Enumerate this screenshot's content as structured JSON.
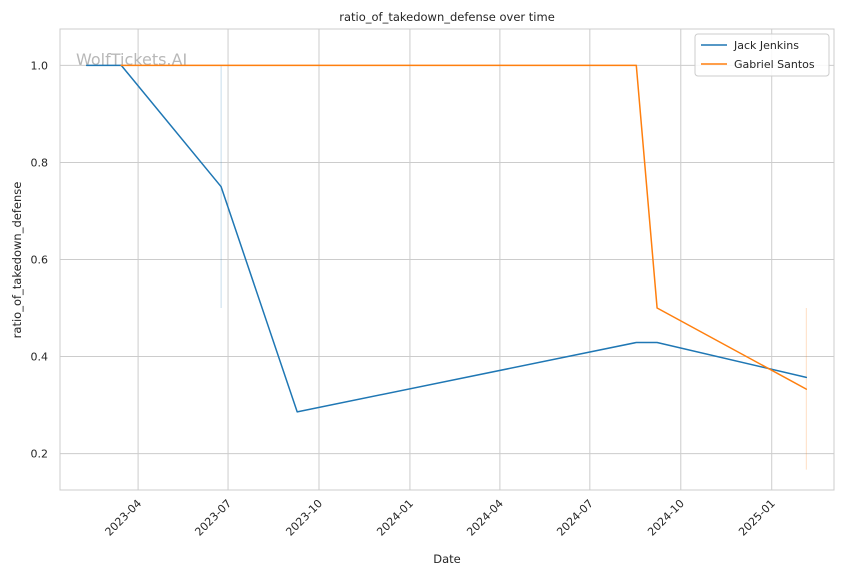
{
  "chart_data": {
    "type": "line",
    "title": "ratio_of_takedown_defense over time",
    "xlabel": "Date",
    "ylabel": "ratio_of_takedown_defense",
    "watermark": "WolfTickets.AI",
    "x_ticks": [
      "2023-04",
      "2023-07",
      "2023-10",
      "2024-01",
      "2024-04",
      "2024-07",
      "2024-10",
      "2025-01"
    ],
    "y_ticks": [
      0.2,
      0.4,
      0.6,
      0.8,
      1.0
    ],
    "y_tick_labels": [
      "0.2",
      "0.4",
      "0.6",
      "0.8",
      "1.0"
    ],
    "xlim": [
      "2023-01-12",
      "2025-03-05"
    ],
    "ylim": [
      0.125,
      1.075
    ],
    "grid": true,
    "legend_position": "top-right",
    "series": [
      {
        "name": "Jack Jenkins",
        "color": "#1f77b4",
        "points": [
          {
            "x": "2023-02-08",
            "y": 1.0
          },
          {
            "x": "2023-03-15",
            "y": 1.0
          },
          {
            "x": "2023-06-24",
            "y": 0.75
          },
          {
            "x": "2023-09-09",
            "y": 0.286
          },
          {
            "x": "2024-08-17",
            "y": 0.429
          },
          {
            "x": "2024-09-07",
            "y": 0.429
          },
          {
            "x": "2025-02-05",
            "y": 0.357
          }
        ]
      },
      {
        "name": "Gabriel Santos",
        "color": "#ff7f0e",
        "points": [
          {
            "x": "2023-03-15",
            "y": 1.0
          },
          {
            "x": "2024-08-17",
            "y": 1.0
          },
          {
            "x": "2024-09-07",
            "y": 0.5
          },
          {
            "x": "2025-02-05",
            "y": 0.333
          }
        ]
      }
    ],
    "marker_lines": [
      {
        "x": "2023-06-24",
        "y_range": [
          0.5,
          1.0
        ],
        "color": "#1f77b4"
      },
      {
        "x": "2025-02-05",
        "y_range": [
          0.167,
          0.5
        ],
        "color": "#ff7f0e"
      }
    ]
  }
}
